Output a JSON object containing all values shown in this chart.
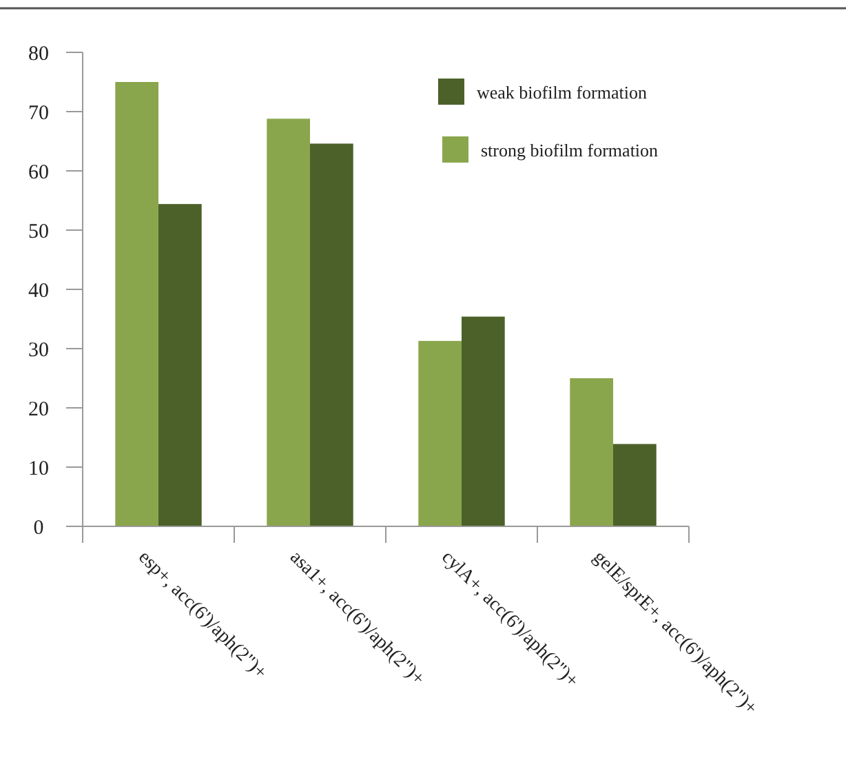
{
  "chart_data": {
    "type": "bar",
    "categories": [
      "esp+, acc(6')/aph(2\")+",
      "asa1+, acc(6')/aph(2\")+",
      "cylA+, acc(6')/aph(2\")+",
      "gelE/sprE+, acc(6')/aph(2\")+"
    ],
    "series": [
      {
        "name": "strong biofilm formation",
        "color": "#8aa64c",
        "values": [
          75,
          68.8,
          31.3,
          25
        ]
      },
      {
        "name": "weak biofilm formation",
        "color": "#4c6129",
        "values": [
          54.4,
          64.6,
          35.4,
          13.9
        ]
      }
    ],
    "ylim": [
      0,
      80
    ],
    "yticks": [
      0,
      10,
      20,
      30,
      40,
      50,
      60,
      70,
      80
    ],
    "grid": false,
    "legend": "top right"
  }
}
